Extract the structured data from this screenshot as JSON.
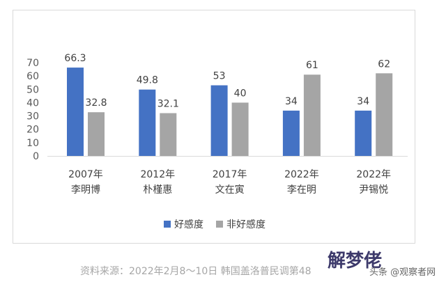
{
  "chart_data": {
    "type": "bar",
    "categories": [
      [
        "2007年",
        "李明博"
      ],
      [
        "2012年",
        "朴槿惠"
      ],
      [
        "2017年",
        "文在寅"
      ],
      [
        "2022年",
        "李在明"
      ],
      [
        "2022年",
        "尹锡悦"
      ]
    ],
    "series": [
      {
        "name": "好感度",
        "color": "#4472c4",
        "values": [
          66.3,
          49.8,
          53,
          34,
          34
        ],
        "labels": [
          "66.3",
          "49.8",
          "53",
          "34",
          "34"
        ]
      },
      {
        "name": "非好感度",
        "color": "#a5a5a5",
        "values": [
          32.8,
          32.1,
          40,
          61,
          62
        ],
        "labels": [
          "32.8",
          "32.1",
          "40",
          "61",
          "62"
        ]
      }
    ],
    "ylim": [
      0,
      70
    ],
    "yticks": [
      0,
      10,
      20,
      30,
      40,
      50,
      60,
      70
    ],
    "legend": "bottom",
    "grid": false
  },
  "source": "资料来源：2022年2月8～10日 韩国盖洛普民调第48",
  "watermark": "解梦佬",
  "watermark_credit": "头条 @观察者网"
}
